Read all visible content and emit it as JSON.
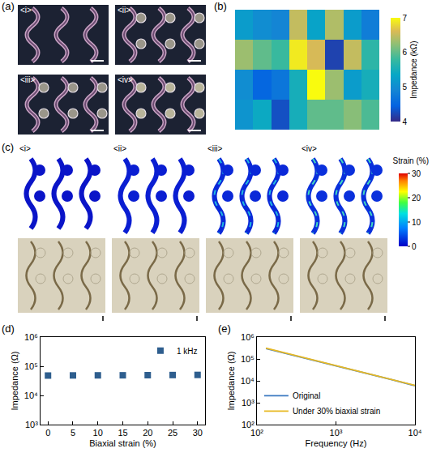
{
  "panel_a": {
    "label": "(a)",
    "images": [
      "<i>",
      "<ii>",
      "<iii>",
      "<iv>"
    ]
  },
  "chart_data": [
    {
      "label": "(b)",
      "type": "heatmap",
      "cells": [
        [
          5.2,
          5.0,
          4.9,
          6.5,
          5.3,
          6.4,
          5.2,
          4.8
        ],
        [
          6.3,
          6.0,
          5.8,
          6.9,
          6.6,
          4.2,
          6.5,
          5.7
        ],
        [
          5.0,
          4.5,
          4.7,
          5.5,
          7.0,
          6.3,
          5.2,
          5.5
        ],
        [
          5.1,
          5.4,
          4.3,
          5.5,
          6.0,
          6.0,
          6.2,
          5.9
        ]
      ],
      "colorbar": {
        "title": "Impedance (kΩ)",
        "range": [
          4,
          7
        ],
        "ticks": [
          4,
          5,
          6,
          7
        ]
      },
      "tick_labels": false
    },
    {
      "label": "(d)",
      "type": "scatter",
      "x": [
        0,
        5,
        10,
        15,
        20,
        25,
        30
      ],
      "series": [
        {
          "name": "1 kHz",
          "color": "#2e5e8e",
          "marker": "square",
          "values": [
            48000,
            48500,
            48800,
            49000,
            49500,
            50000,
            50500
          ]
        }
      ],
      "xlabel": "Biaxial strain (%)",
      "ylabel": "Impedance (Ω)",
      "xlim": [
        -1.5,
        31.5
      ],
      "ylim": [
        1000,
        1000000
      ],
      "xticks": [
        0,
        5,
        10,
        15,
        20,
        25,
        30
      ],
      "yticks": [
        {
          "value": 1000,
          "label": "10³"
        },
        {
          "value": 10000,
          "label": "10⁴"
        },
        {
          "value": 100000,
          "label": "10⁵"
        },
        {
          "value": 1000000,
          "label": "10⁶"
        }
      ],
      "log": "y",
      "legend": "top right"
    },
    {
      "label": "(e)",
      "type": "line",
      "x": [
        130,
        200,
        500,
        1000,
        2000,
        5000,
        10000
      ],
      "series": [
        {
          "name": "Original",
          "color": "#3a78c0",
          "values": [
            300000,
            205000,
            90000,
            48000,
            25500,
            11500,
            6000
          ]
        },
        {
          "name": "Under 30% biaxial strain",
          "color": "#e8b923",
          "values": [
            310000,
            210000,
            92000,
            49500,
            26000,
            11800,
            6200
          ]
        }
      ],
      "xlabel": "Frequency (Hz)",
      "ylabel": "Impedance (Ω)",
      "xlim": [
        100,
        10000
      ],
      "ylim": [
        100,
        1000000
      ],
      "xticks": [
        {
          "value": 100,
          "label": "10²"
        },
        {
          "value": 1000,
          "label": "10³"
        },
        {
          "value": 10000,
          "label": "10⁴"
        }
      ],
      "yticks": [
        {
          "value": 100,
          "label": "10²"
        },
        {
          "value": 1000,
          "label": "10³"
        },
        {
          "value": 10000,
          "label": "10⁴"
        },
        {
          "value": 100000,
          "label": "10⁵"
        },
        {
          "value": 1000000,
          "label": "10⁶"
        }
      ],
      "log": true,
      "legend": "bottom left"
    }
  ],
  "panel_c": {
    "label": "(c)",
    "images": [
      "<i>",
      "<ii>",
      "<iii>",
      "<iv>"
    ],
    "colorbar": {
      "title": "Strain (%)",
      "range": [
        0,
        30
      ],
      "ticks": [
        0,
        10,
        20,
        30
      ]
    }
  }
}
